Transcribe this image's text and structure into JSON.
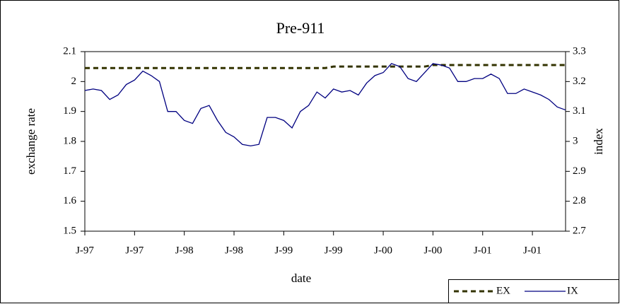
{
  "chart_data": {
    "type": "line",
    "title": "Pre-911",
    "x_label": "date",
    "y_label": "exchange rate",
    "y2_label": "index",
    "categories": [
      "J-97",
      null,
      null,
      null,
      null,
      null,
      "J-97",
      null,
      null,
      null,
      null,
      null,
      "J-98",
      null,
      null,
      null,
      null,
      null,
      "J-98",
      null,
      null,
      null,
      null,
      null,
      "J-99",
      null,
      null,
      null,
      null,
      null,
      "J-99",
      null,
      null,
      null,
      null,
      null,
      "J-00",
      null,
      null,
      null,
      null,
      null,
      "J-00",
      null,
      null,
      null,
      null,
      null,
      "J-01",
      null,
      null,
      null,
      null,
      null,
      "J-01",
      null,
      null,
      null,
      null
    ],
    "ylim": [
      1.5,
      2.1
    ],
    "yticks": [
      1.5,
      1.6,
      1.7,
      1.8,
      1.9,
      2,
      2.1
    ],
    "y2lim": [
      2.7,
      3.3
    ],
    "y2ticks": [
      2.7,
      2.8,
      2.9,
      3,
      3.1,
      3.2,
      3.3
    ],
    "grid": false,
    "legend": "bottom-right",
    "series": [
      {
        "name": "EX",
        "color": "#333300",
        "dashed": true,
        "values": [
          2.045,
          2.045,
          2.045,
          2.045,
          2.045,
          2.045,
          2.045,
          2.045,
          2.045,
          2.045,
          2.045,
          2.045,
          2.045,
          2.045,
          2.045,
          2.045,
          2.045,
          2.045,
          2.045,
          2.045,
          2.045,
          2.045,
          2.045,
          2.045,
          2.045,
          2.045,
          2.045,
          2.045,
          2.045,
          2.045,
          2.05,
          2.05,
          2.05,
          2.05,
          2.05,
          2.05,
          2.05,
          2.05,
          2.05,
          2.05,
          2.05,
          2.05,
          2.055,
          2.055,
          2.055,
          2.055,
          2.055,
          2.055,
          2.055,
          2.055,
          2.055,
          2.055,
          2.055,
          2.055,
          2.055,
          2.055,
          2.055,
          2.055,
          2.055
        ]
      },
      {
        "name": "IX",
        "color": "#000080",
        "axis": "y2",
        "values": [
          3.17,
          3.175,
          3.17,
          3.14,
          3.155,
          3.19,
          3.205,
          3.235,
          3.22,
          3.2,
          3.1,
          3.1,
          3.07,
          3.06,
          3.11,
          3.12,
          3.07,
          3.03,
          3.015,
          2.99,
          2.985,
          2.99,
          3.08,
          3.08,
          3.07,
          3.045,
          3.1,
          3.12,
          3.165,
          3.145,
          3.175,
          3.165,
          3.17,
          3.155,
          3.195,
          3.22,
          3.23,
          3.26,
          3.25,
          3.21,
          3.2,
          3.23,
          3.26,
          3.255,
          3.245,
          3.2,
          3.2,
          3.21,
          3.21,
          3.225,
          3.21,
          3.16,
          3.16,
          3.175,
          3.165,
          3.155,
          3.14,
          3.115,
          3.105
        ]
      }
    ]
  }
}
